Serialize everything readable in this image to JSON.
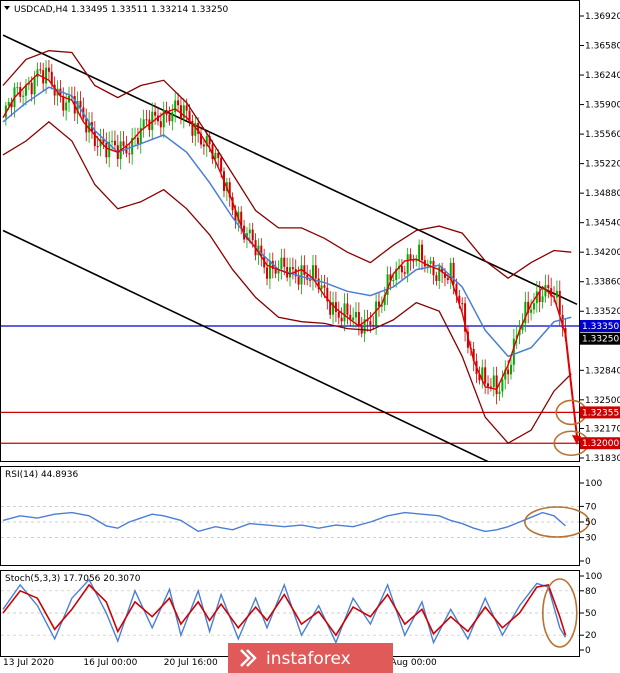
{
  "chart_data": [
    {
      "type": "candlestick",
      "panel": "price",
      "title": "USDCAD,H4  1.33495 1.33511 1.33214 1.33250",
      "ylim": [
        1.3183,
        1.3692
      ],
      "y_ticks": [
        "1.36920",
        "1.36580",
        "1.36240",
        "1.35900",
        "1.35560",
        "1.35220",
        "1.34880",
        "1.34540",
        "1.34200",
        "1.33860",
        "1.33520",
        "1.32840",
        "1.32500",
        "1.32170",
        "1.31830"
      ],
      "close_path": [
        [
          0,
          1.3575
        ],
        [
          4,
          1.3598
        ],
        [
          8,
          1.3612
        ],
        [
          12,
          1.3625
        ],
        [
          16,
          1.3618
        ],
        [
          20,
          1.36
        ],
        [
          24,
          1.3595
        ],
        [
          28,
          1.357
        ],
        [
          32,
          1.3555
        ],
        [
          36,
          1.354
        ],
        [
          40,
          1.3535
        ],
        [
          44,
          1.3545
        ],
        [
          48,
          1.356
        ],
        [
          52,
          1.357
        ],
        [
          56,
          1.358
        ],
        [
          60,
          1.3585
        ],
        [
          64,
          1.3575
        ],
        [
          68,
          1.356
        ],
        [
          72,
          1.354
        ],
        [
          76,
          1.351
        ],
        [
          80,
          1.3478
        ],
        [
          84,
          1.344
        ],
        [
          88,
          1.3425
        ],
        [
          92,
          1.3405
        ],
        [
          96,
          1.34
        ],
        [
          100,
          1.3395
        ],
        [
          104,
          1.34
        ],
        [
          108,
          1.339
        ],
        [
          112,
          1.337
        ],
        [
          116,
          1.3355
        ],
        [
          120,
          1.3345
        ],
        [
          124,
          1.3335
        ],
        [
          128,
          1.3345
        ],
        [
          132,
          1.336
        ],
        [
          136,
          1.3395
        ],
        [
          140,
          1.341
        ],
        [
          144,
          1.3412
        ],
        [
          148,
          1.3405
        ],
        [
          152,
          1.34
        ],
        [
          156,
          1.339
        ],
        [
          160,
          1.335
        ],
        [
          164,
          1.3295
        ],
        [
          168,
          1.3265
        ],
        [
          172,
          1.3262
        ],
        [
          176,
          1.329
        ],
        [
          180,
          1.333
        ],
        [
          184,
          1.336
        ],
        [
          188,
          1.338
        ],
        [
          192,
          1.3368
        ],
        [
          196,
          1.3325
        ]
      ],
      "bollinger_upper": [
        [
          0,
          1.3612
        ],
        [
          8,
          1.3642
        ],
        [
          16,
          1.3652
        ],
        [
          24,
          1.365
        ],
        [
          32,
          1.3612
        ],
        [
          40,
          1.3598
        ],
        [
          48,
          1.3612
        ],
        [
          56,
          1.3618
        ],
        [
          64,
          1.3592
        ],
        [
          72,
          1.3552
        ],
        [
          80,
          1.351
        ],
        [
          88,
          1.3468
        ],
        [
          96,
          1.3448
        ],
        [
          104,
          1.3448
        ],
        [
          112,
          1.3436
        ],
        [
          120,
          1.342
        ],
        [
          128,
          1.3408
        ],
        [
          136,
          1.3428
        ],
        [
          144,
          1.3445
        ],
        [
          152,
          1.345
        ],
        [
          160,
          1.3442
        ],
        [
          168,
          1.341
        ],
        [
          176,
          1.339
        ],
        [
          184,
          1.3408
        ],
        [
          192,
          1.3422
        ],
        [
          198,
          1.342
        ]
      ],
      "bollinger_lower": [
        [
          0,
          1.3532
        ],
        [
          8,
          1.3548
        ],
        [
          16,
          1.357
        ],
        [
          24,
          1.3548
        ],
        [
          32,
          1.3498
        ],
        [
          40,
          1.347
        ],
        [
          48,
          1.3478
        ],
        [
          56,
          1.3492
        ],
        [
          64,
          1.347
        ],
        [
          72,
          1.344
        ],
        [
          80,
          1.34
        ],
        [
          88,
          1.3368
        ],
        [
          96,
          1.3345
        ],
        [
          104,
          1.334
        ],
        [
          112,
          1.3338
        ],
        [
          120,
          1.3332
        ],
        [
          128,
          1.333
        ],
        [
          136,
          1.3342
        ],
        [
          144,
          1.3362
        ],
        [
          152,
          1.3352
        ],
        [
          160,
          1.33
        ],
        [
          168,
          1.323
        ],
        [
          176,
          1.32
        ],
        [
          184,
          1.3215
        ],
        [
          192,
          1.326
        ],
        [
          198,
          1.328
        ]
      ],
      "moving_average": [
        [
          0,
          1.357
        ],
        [
          8,
          1.3592
        ],
        [
          16,
          1.361
        ],
        [
          24,
          1.36
        ],
        [
          32,
          1.356
        ],
        [
          40,
          1.3535
        ],
        [
          48,
          1.3545
        ],
        [
          56,
          1.3555
        ],
        [
          64,
          1.3535
        ],
        [
          72,
          1.35
        ],
        [
          80,
          1.346
        ],
        [
          88,
          1.3425
        ],
        [
          96,
          1.34
        ],
        [
          104,
          1.3392
        ],
        [
          112,
          1.3385
        ],
        [
          120,
          1.3375
        ],
        [
          128,
          1.337
        ],
        [
          136,
          1.338
        ],
        [
          144,
          1.34
        ],
        [
          152,
          1.3405
        ],
        [
          160,
          1.338
        ],
        [
          168,
          1.333
        ],
        [
          176,
          1.33
        ],
        [
          184,
          1.331
        ],
        [
          192,
          1.334
        ],
        [
          198,
          1.3345
        ]
      ],
      "channel_upper": [
        [
          0,
          1.367
        ],
        [
          200,
          1.336
        ]
      ],
      "channel_lower": [
        [
          0,
          1.3445
        ],
        [
          200,
          1.313
        ]
      ],
      "levels": [
        {
          "label": "1.33350",
          "value": 1.3335,
          "color": "#0000cc"
        },
        {
          "label": "1.32355",
          "value": 1.32355,
          "color": "#cc0000"
        },
        {
          "label": "1.32000",
          "value": 1.32,
          "color": "#cc0000"
        }
      ],
      "current_price_label": "1.33250",
      "forecast_arrow": [
        [
          196,
          1.3325
        ],
        [
          200,
          1.3198
        ]
      ]
    },
    {
      "type": "line",
      "panel": "rsi",
      "title": "RSI(14) 44.8936",
      "ylim": [
        0,
        100
      ],
      "y_ticks": [
        "100",
        "70",
        "50",
        "30",
        "0"
      ],
      "values": [
        [
          0,
          52
        ],
        [
          6,
          58
        ],
        [
          12,
          55
        ],
        [
          18,
          60
        ],
        [
          24,
          62
        ],
        [
          30,
          58
        ],
        [
          36,
          45
        ],
        [
          40,
          42
        ],
        [
          44,
          50
        ],
        [
          48,
          55
        ],
        [
          52,
          60
        ],
        [
          56,
          58
        ],
        [
          62,
          52
        ],
        [
          68,
          38
        ],
        [
          74,
          44
        ],
        [
          80,
          40
        ],
        [
          86,
          48
        ],
        [
          92,
          46
        ],
        [
          98,
          44
        ],
        [
          104,
          46
        ],
        [
          110,
          42
        ],
        [
          116,
          46
        ],
        [
          122,
          44
        ],
        [
          128,
          50
        ],
        [
          134,
          58
        ],
        [
          140,
          62
        ],
        [
          146,
          60
        ],
        [
          152,
          58
        ],
        [
          156,
          52
        ],
        [
          160,
          48
        ],
        [
          164,
          42
        ],
        [
          168,
          38
        ],
        [
          172,
          40
        ],
        [
          176,
          44
        ],
        [
          180,
          50
        ],
        [
          184,
          56
        ],
        [
          188,
          62
        ],
        [
          192,
          58
        ],
        [
          196,
          45
        ]
      ]
    },
    {
      "type": "line",
      "panel": "stochastic",
      "title": "Stoch(5,3,3) 17.7056 20.3070",
      "ylim": [
        0,
        100
      ],
      "y_ticks": [
        "100",
        "80",
        "50",
        "20",
        "0"
      ],
      "x_ticks": [
        "13 Jul 2020",
        "16 Jul 00:00",
        "20 Jul 16:00",
        "23 Jul 08:00",
        "7 Aug 00:00"
      ],
      "series": [
        {
          "name": "main",
          "color": "#4a7fd6",
          "values": [
            [
              0,
              55
            ],
            [
              6,
              88
            ],
            [
              12,
              60
            ],
            [
              18,
              15
            ],
            [
              24,
              70
            ],
            [
              30,
              95
            ],
            [
              36,
              50
            ],
            [
              40,
              12
            ],
            [
              46,
              80
            ],
            [
              52,
              30
            ],
            [
              58,
              82
            ],
            [
              62,
              20
            ],
            [
              68,
              80
            ],
            [
              72,
              25
            ],
            [
              76,
              75
            ],
            [
              82,
              15
            ],
            [
              88,
              70
            ],
            [
              92,
              30
            ],
            [
              98,
              88
            ],
            [
              104,
              20
            ],
            [
              110,
              60
            ],
            [
              116,
              10
            ],
            [
              122,
              70
            ],
            [
              128,
              35
            ],
            [
              134,
              88
            ],
            [
              140,
              20
            ],
            [
              146,
              65
            ],
            [
              150,
              10
            ],
            [
              156,
              55
            ],
            [
              162,
              15
            ],
            [
              168,
              70
            ],
            [
              174,
              20
            ],
            [
              180,
              60
            ],
            [
              186,
              90
            ],
            [
              190,
              85
            ],
            [
              194,
              30
            ],
            [
              196,
              17
            ]
          ]
        },
        {
          "name": "signal",
          "color": "#d00000",
          "values": [
            [
              0,
              50
            ],
            [
              6,
              80
            ],
            [
              12,
              70
            ],
            [
              18,
              28
            ],
            [
              24,
              55
            ],
            [
              30,
              88
            ],
            [
              36,
              65
            ],
            [
              40,
              25
            ],
            [
              46,
              65
            ],
            [
              52,
              45
            ],
            [
              58,
              70
            ],
            [
              62,
              35
            ],
            [
              68,
              65
            ],
            [
              72,
              40
            ],
            [
              76,
              62
            ],
            [
              82,
              30
            ],
            [
              88,
              58
            ],
            [
              92,
              40
            ],
            [
              98,
              75
            ],
            [
              104,
              35
            ],
            [
              110,
              52
            ],
            [
              116,
              20
            ],
            [
              122,
              58
            ],
            [
              128,
              45
            ],
            [
              134,
              75
            ],
            [
              140,
              35
            ],
            [
              146,
              55
            ],
            [
              150,
              22
            ],
            [
              156,
              45
            ],
            [
              162,
              25
            ],
            [
              168,
              58
            ],
            [
              174,
              30
            ],
            [
              180,
              50
            ],
            [
              186,
              85
            ],
            [
              190,
              88
            ],
            [
              194,
              45
            ],
            [
              196,
              20
            ]
          ]
        }
      ]
    }
  ],
  "watermark": {
    "text": "instaforex"
  },
  "colors": {
    "bull": "#00aa00",
    "bear": "#cc0000",
    "bb": "#8b0000",
    "ma": "#4a7fd6",
    "channel": "#000000",
    "annot": "#b87333"
  }
}
